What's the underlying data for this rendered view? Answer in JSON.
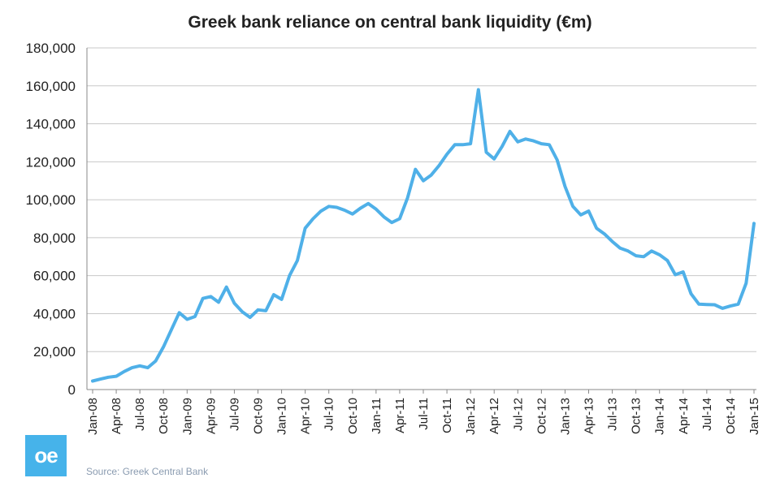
{
  "logo_text": "oe",
  "source": "Source: Greek Central Bank",
  "chart_data": {
    "type": "line",
    "title": "Greek bank reliance on central bank liquidity (€m)",
    "xlabel": "",
    "ylabel": "",
    "ylim": [
      0,
      180000
    ],
    "yticks": [
      0,
      20000,
      40000,
      60000,
      80000,
      100000,
      120000,
      140000,
      160000,
      180000
    ],
    "ytick_labels": [
      "0",
      "20,000",
      "40,000",
      "60,000",
      "80,000",
      "100,000",
      "120,000",
      "140,000",
      "160,000",
      "180,000"
    ],
    "xtick_labels": [
      "Jan-08",
      "Apr-08",
      "Jul-08",
      "Oct-08",
      "Jan-09",
      "Apr-09",
      "Jul-09",
      "Oct-09",
      "Jan-10",
      "Apr-10",
      "Jul-10",
      "Oct-10",
      "Jan-11",
      "Apr-11",
      "Jul-11",
      "Oct-11",
      "Jan-12",
      "Apr-12",
      "Jul-12",
      "Oct-12",
      "Jan-13",
      "Apr-13",
      "Jul-13",
      "Oct-13",
      "Jan-14",
      "Apr-14",
      "Jul-14",
      "Oct-14",
      "Jan-15"
    ],
    "grid": true,
    "series": [
      {
        "name": "Central bank liquidity",
        "color": "#4fb0e8",
        "values": [
          4500,
          5500,
          6500,
          7000,
          9500,
          11500,
          12500,
          11500,
          15000,
          22500,
          31500,
          40500,
          37000,
          38500,
          48000,
          49000,
          46000,
          54000,
          45500,
          41000,
          38000,
          42000,
          41500,
          50000,
          47500,
          60000,
          68000,
          85000,
          90000,
          94000,
          96500,
          96000,
          94500,
          92500,
          95500,
          98000,
          95000,
          91000,
          88000,
          90000,
          101000,
          116000,
          110000,
          113000,
          118000,
          124000,
          129000,
          129000,
          129500,
          158000,
          125000,
          121500,
          128000,
          136000,
          130500,
          132000,
          131000,
          129500,
          129000,
          121000,
          107000,
          96500,
          92000,
          94000,
          85000,
          82000,
          78000,
          74500,
          73000,
          70500,
          70000,
          73000,
          71000,
          68000,
          60500,
          62000,
          50500,
          45000,
          44800,
          44700,
          42800,
          44000,
          45000,
          56000,
          87500
        ]
      }
    ]
  }
}
